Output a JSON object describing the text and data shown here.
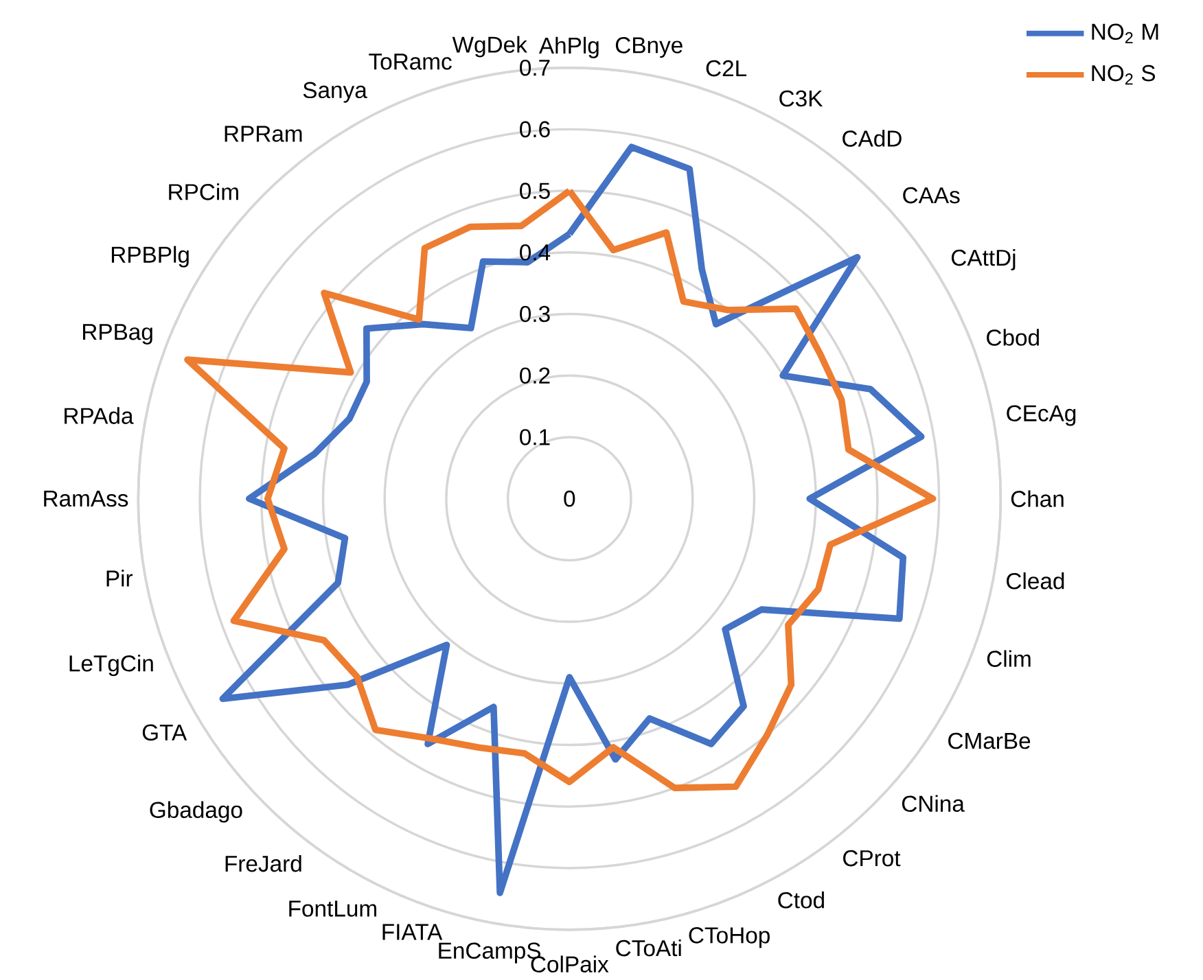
{
  "chart_data": {
    "type": "radar",
    "categories": [
      "AhPlg",
      "CBnye",
      "C2L",
      "C3K",
      "CAdD",
      "CAAs",
      "CAttDj",
      "Cbod",
      "CEcAg",
      "Chan",
      "Clead",
      "Clim",
      "CMarBe",
      "CNina",
      "CProt",
      "Ctod",
      "CToHop",
      "CToAti",
      "ColPaix",
      "EnCampS",
      "FIATA",
      "FontLum",
      "FreJard",
      "Gbadago",
      "GTA",
      "LeTgCin",
      "Pir",
      "RamAss",
      "RPAda",
      "RPBag",
      "RPBPlg",
      "RPCim",
      "RPRam",
      "Sanya",
      "ToRamc",
      "WgDek"
    ],
    "series": [
      {
        "name": "NO$_{2}$ M",
        "color": "#4472c4",
        "values": [
          0.43,
          0.58,
          0.57,
          0.43,
          0.37,
          0.61,
          0.4,
          0.52,
          0.58,
          0.39,
          0.55,
          0.57,
          0.36,
          0.33,
          0.44,
          0.46,
          0.38,
          0.43,
          0.29,
          0.65,
          0.36,
          0.46,
          0.31,
          0.47,
          0.65,
          0.4,
          0.37,
          0.52,
          0.42,
          0.38,
          0.38,
          0.43,
          0.37,
          0.32,
          0.41,
          0.39
        ]
      },
      {
        "name": "NO$_{2}$ S",
        "color": "#ed7d31",
        "values": [
          0.5,
          0.41,
          0.46,
          0.37,
          0.4,
          0.48,
          0.47,
          0.47,
          0.46,
          0.59,
          0.43,
          0.43,
          0.41,
          0.47,
          0.5,
          0.54,
          0.5,
          0.41,
          0.46,
          0.42,
          0.43,
          0.45,
          0.49,
          0.45,
          0.46,
          0.58,
          0.47,
          0.49,
          0.47,
          0.66,
          0.41,
          0.52,
          0.38,
          0.47,
          0.47,
          0.45
        ]
      }
    ],
    "ylim": [
      0,
      0.7
    ],
    "yticks": [
      0,
      0.1,
      0.2,
      0.3,
      0.4,
      0.5,
      0.6,
      0.7
    ],
    "grid": true,
    "legend": "top right"
  }
}
